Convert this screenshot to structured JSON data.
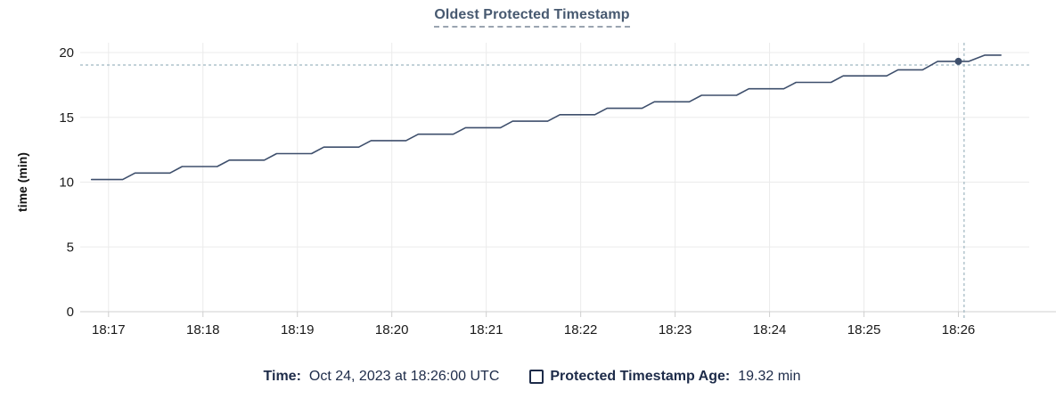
{
  "title": "Oldest Protected Timestamp",
  "legend": {
    "time_label": "Time:",
    "time_value": "Oct 24, 2023 at 18:26:00 UTC",
    "series_label": "Protected Timestamp Age:",
    "series_value": "19.32 min"
  },
  "colors": {
    "title": "#475970",
    "line": "#3e4f6c",
    "point": "#3e4f6c",
    "grid": "#ebebeb",
    "axis": "#cfcfcf",
    "tick_text": "#1a1a1a",
    "axis_title_text": "#111111",
    "crosshair": "#9fb6c1",
    "legend_text": "#1d2b49",
    "background": "#ffffff"
  },
  "chart_data": {
    "type": "line",
    "title": "Oldest Protected Timestamp",
    "xlabel": "",
    "ylabel": "time (min)",
    "ylim": [
      0,
      20
    ],
    "y_ticks": [
      0,
      5,
      10,
      15,
      20
    ],
    "x_domain_minutes_after_1800": [
      16.7,
      26.75
    ],
    "x_ticks": [
      {
        "t": 17,
        "label": "18:17"
      },
      {
        "t": 18,
        "label": "18:18"
      },
      {
        "t": 19,
        "label": "18:19"
      },
      {
        "t": 20,
        "label": "18:20"
      },
      {
        "t": 21,
        "label": "18:21"
      },
      {
        "t": 22,
        "label": "18:22"
      },
      {
        "t": 23,
        "label": "18:23"
      },
      {
        "t": 24,
        "label": "18:24"
      },
      {
        "t": 25,
        "label": "18:25"
      },
      {
        "t": 26,
        "label": "18:26"
      }
    ],
    "grid": true,
    "legend_position": "bottom",
    "series": [
      {
        "name": "Protected Timestamp Age",
        "unit": "min",
        "points": [
          [
            16.82,
            10.2
          ],
          [
            17.15,
            10.2
          ],
          [
            17.28,
            10.7
          ],
          [
            17.65,
            10.7
          ],
          [
            17.78,
            11.2
          ],
          [
            18.15,
            11.2
          ],
          [
            18.28,
            11.7
          ],
          [
            18.65,
            11.7
          ],
          [
            18.78,
            12.2
          ],
          [
            19.15,
            12.2
          ],
          [
            19.28,
            12.7
          ],
          [
            19.65,
            12.7
          ],
          [
            19.78,
            13.2
          ],
          [
            20.15,
            13.2
          ],
          [
            20.28,
            13.7
          ],
          [
            20.65,
            13.7
          ],
          [
            20.78,
            14.2
          ],
          [
            21.15,
            14.2
          ],
          [
            21.28,
            14.7
          ],
          [
            21.65,
            14.7
          ],
          [
            21.78,
            15.2
          ],
          [
            22.15,
            15.2
          ],
          [
            22.28,
            15.7
          ],
          [
            22.65,
            15.7
          ],
          [
            22.78,
            16.2
          ],
          [
            23.15,
            16.2
          ],
          [
            23.28,
            16.7
          ],
          [
            23.65,
            16.7
          ],
          [
            23.78,
            17.2
          ],
          [
            24.15,
            17.2
          ],
          [
            24.28,
            17.7
          ],
          [
            24.65,
            17.7
          ],
          [
            24.78,
            18.2
          ],
          [
            25.24,
            18.2
          ],
          [
            25.36,
            18.67
          ],
          [
            25.62,
            18.67
          ],
          [
            25.78,
            19.32
          ],
          [
            26.11,
            19.32
          ],
          [
            26.28,
            19.8
          ],
          [
            26.45,
            19.8
          ]
        ]
      }
    ],
    "crosshair": {
      "point_t": 26.0,
      "point_value": 19.32,
      "point_time_label": "Oct 24, 2023 at 18:26:00 UTC",
      "h_line_value": 19.04,
      "v_line_t": 26.06
    }
  }
}
